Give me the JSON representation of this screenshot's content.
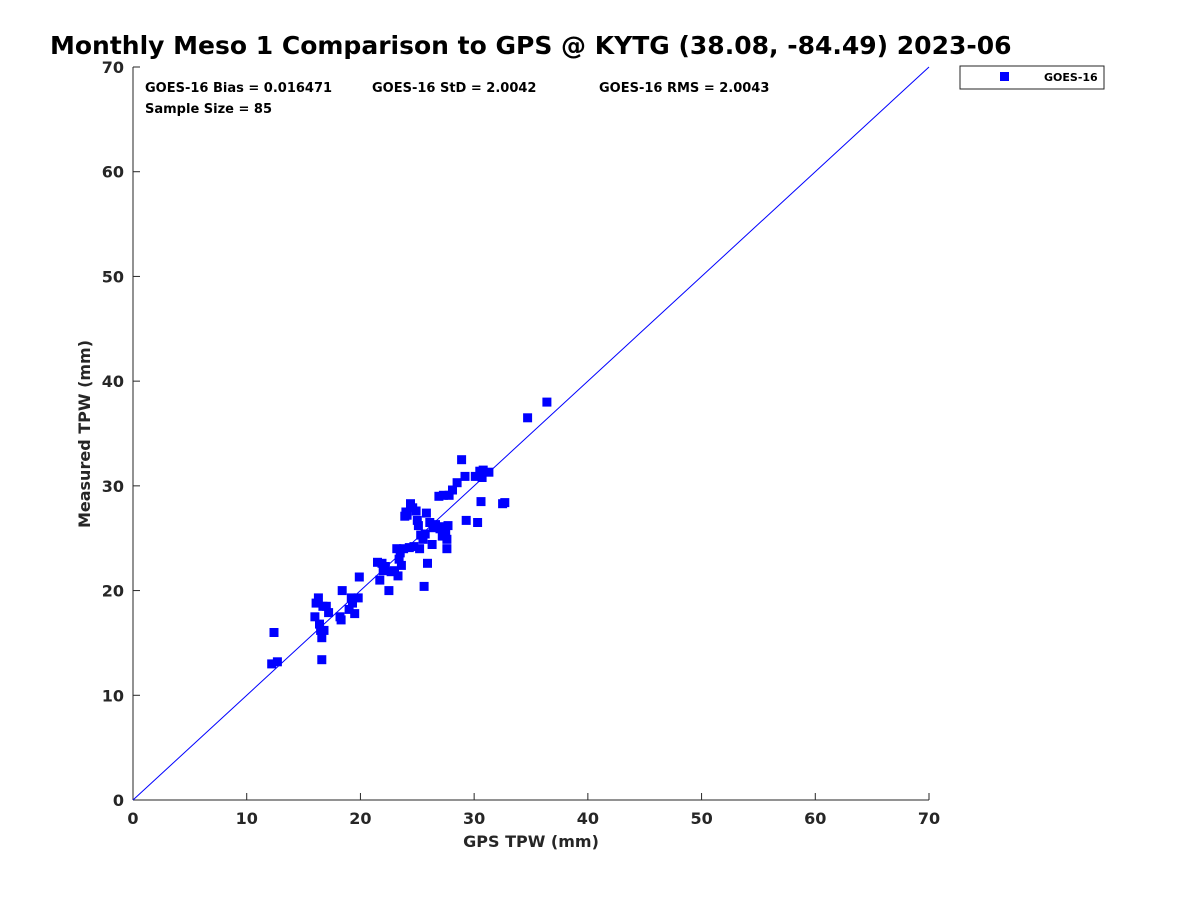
{
  "chart_data": {
    "type": "scatter",
    "title": "Monthly Meso 1 Comparison to GPS @ KYTG (38.08, -84.49) 2023-06",
    "xlabel": "GPS TPW (mm)",
    "ylabel": "Measured TPW (mm)",
    "xlim": [
      0,
      70
    ],
    "ylim": [
      0,
      70
    ],
    "xticks": [
      0,
      10,
      20,
      30,
      40,
      50,
      60,
      70
    ],
    "yticks": [
      0,
      10,
      20,
      30,
      40,
      50,
      60,
      70
    ],
    "xtick_labels": [
      "0",
      "10",
      "20",
      "30",
      "40",
      "50",
      "60",
      "70"
    ],
    "ytick_labels": [
      "0",
      "10",
      "20",
      "30",
      "40",
      "50",
      "60",
      "70"
    ],
    "grid": false,
    "legend_position": "outside-top-right",
    "stats": {
      "bias": "GOES-16 Bias = 0.016471",
      "std": "GOES-16 StD = 2.0042",
      "rms": "GOES-16 RMS = 2.0043",
      "sample_size": "Sample Size = 85"
    },
    "reference_line": {
      "x": [
        0,
        70
      ],
      "y": [
        0,
        70
      ],
      "color": "#0000ff"
    },
    "series": [
      {
        "name": "GOES-16",
        "color": "#0000ff",
        "marker": "square",
        "points": [
          [
            12.2,
            13.0
          ],
          [
            12.7,
            13.2
          ],
          [
            12.4,
            16.0
          ],
          [
            16.6,
            13.4
          ],
          [
            16.0,
            17.5
          ],
          [
            16.1,
            18.8
          ],
          [
            16.3,
            19.3
          ],
          [
            16.4,
            16.8
          ],
          [
            16.5,
            16.2
          ],
          [
            16.6,
            15.5
          ],
          [
            16.7,
            18.5
          ],
          [
            16.8,
            16.2
          ],
          [
            17.0,
            18.5
          ],
          [
            17.2,
            17.9
          ],
          [
            18.2,
            17.5
          ],
          [
            18.3,
            17.2
          ],
          [
            18.4,
            20.0
          ],
          [
            19.0,
            18.2
          ],
          [
            19.2,
            19.3
          ],
          [
            19.5,
            17.8
          ],
          [
            19.8,
            19.3
          ],
          [
            19.9,
            21.3
          ],
          [
            19.3,
            18.8
          ],
          [
            21.5,
            22.7
          ],
          [
            21.7,
            21.0
          ],
          [
            21.9,
            22.6
          ],
          [
            22.0,
            21.9
          ],
          [
            22.2,
            22.3
          ],
          [
            22.5,
            20.0
          ],
          [
            22.7,
            21.8
          ],
          [
            23.0,
            21.9
          ],
          [
            23.2,
            24.0
          ],
          [
            23.3,
            21.4
          ],
          [
            23.4,
            23.0
          ],
          [
            23.5,
            23.6
          ],
          [
            23.6,
            22.4
          ],
          [
            23.8,
            24.0
          ],
          [
            24.0,
            27.5
          ],
          [
            24.1,
            27.2
          ],
          [
            24.3,
            24.1
          ],
          [
            24.4,
            28.3
          ],
          [
            24.6,
            27.9
          ],
          [
            24.7,
            24.2
          ],
          [
            24.9,
            27.6
          ],
          [
            25.0,
            26.7
          ],
          [
            25.1,
            26.2
          ],
          [
            25.2,
            24.0
          ],
          [
            25.3,
            25.3
          ],
          [
            25.5,
            24.9
          ],
          [
            25.6,
            20.4
          ],
          [
            25.7,
            25.4
          ],
          [
            25.8,
            27.4
          ],
          [
            25.9,
            22.6
          ],
          [
            26.1,
            26.5
          ],
          [
            26.3,
            24.4
          ],
          [
            26.6,
            26.3
          ],
          [
            26.9,
            29.0
          ],
          [
            27.0,
            25.9
          ],
          [
            27.1,
            26.1
          ],
          [
            27.2,
            25.2
          ],
          [
            27.3,
            29.1
          ],
          [
            27.5,
            25.4
          ],
          [
            27.6,
            24.9
          ],
          [
            27.7,
            26.2
          ],
          [
            27.8,
            29.1
          ],
          [
            27.6,
            24.0
          ],
          [
            28.1,
            29.6
          ],
          [
            28.5,
            30.3
          ],
          [
            28.9,
            32.5
          ],
          [
            29.2,
            30.9
          ],
          [
            29.3,
            26.7
          ],
          [
            30.1,
            30.9
          ],
          [
            30.3,
            26.5
          ],
          [
            30.5,
            31.4
          ],
          [
            30.6,
            28.5
          ],
          [
            30.7,
            30.8
          ],
          [
            30.8,
            31.5
          ],
          [
            31.3,
            31.3
          ],
          [
            32.5,
            28.3
          ],
          [
            32.7,
            28.4
          ],
          [
            34.7,
            36.5
          ],
          [
            36.4,
            38.0
          ],
          [
            26.4,
            26.0
          ],
          [
            23.9,
            27.1
          ],
          [
            27.4,
            26.0
          ]
        ]
      }
    ]
  }
}
